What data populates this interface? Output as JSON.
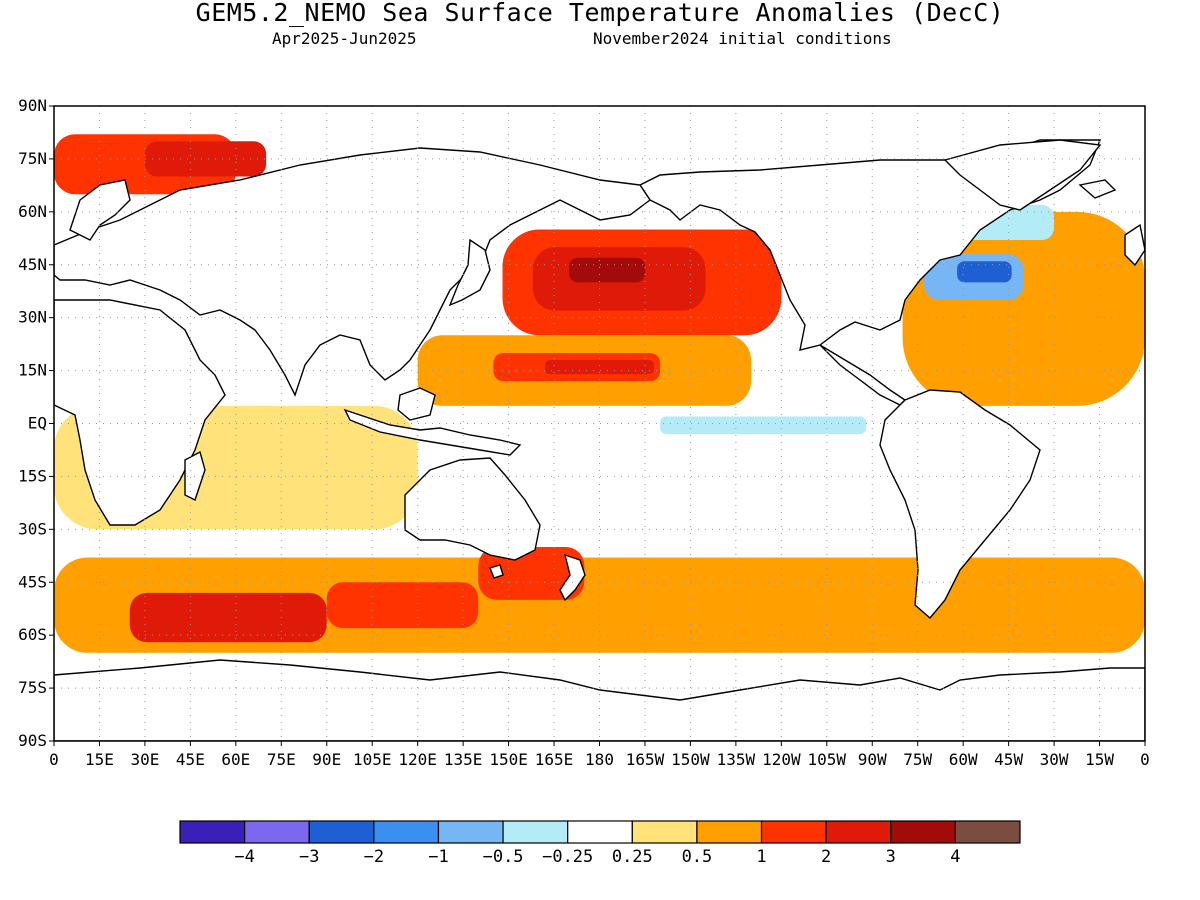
{
  "header": {
    "title": "GEM5.2_NEMO Sea Surface Temperature Anomalies (DecC)",
    "period": "Apr2025-Jun2025",
    "initial_conditions": "November2024 initial conditions"
  },
  "map": {
    "projection": "cylindrical equidistant",
    "lon_range": [
      0,
      360
    ],
    "lat_range": [
      -90,
      90
    ],
    "grid": "dotted every 15 degrees",
    "land_color": "#ffffff",
    "lat_labels": [
      {
        "lat": 90,
        "label": "90N"
      },
      {
        "lat": 75,
        "label": "75N"
      },
      {
        "lat": 60,
        "label": "60N"
      },
      {
        "lat": 45,
        "label": "45N"
      },
      {
        "lat": 30,
        "label": "30N"
      },
      {
        "lat": 15,
        "label": "15N"
      },
      {
        "lat": 0,
        "label": "EQ"
      },
      {
        "lat": -15,
        "label": "15S"
      },
      {
        "lat": -30,
        "label": "30S"
      },
      {
        "lat": -45,
        "label": "45S"
      },
      {
        "lat": -60,
        "label": "60S"
      },
      {
        "lat": -75,
        "label": "75S"
      },
      {
        "lat": -90,
        "label": "90S"
      }
    ],
    "lon_labels": [
      {
        "lon": 0,
        "label": "0"
      },
      {
        "lon": 15,
        "label": "15E"
      },
      {
        "lon": 30,
        "label": "30E"
      },
      {
        "lon": 45,
        "label": "45E"
      },
      {
        "lon": 60,
        "label": "60E"
      },
      {
        "lon": 75,
        "label": "75E"
      },
      {
        "lon": 90,
        "label": "90E"
      },
      {
        "lon": 105,
        "label": "105E"
      },
      {
        "lon": 120,
        "label": "120E"
      },
      {
        "lon": 135,
        "label": "135E"
      },
      {
        "lon": 150,
        "label": "150E"
      },
      {
        "lon": 165,
        "label": "165E"
      },
      {
        "lon": 180,
        "label": "180"
      },
      {
        "lon": 195,
        "label": "165W"
      },
      {
        "lon": 210,
        "label": "150W"
      },
      {
        "lon": 225,
        "label": "135W"
      },
      {
        "lon": 240,
        "label": "120W"
      },
      {
        "lon": 255,
        "label": "105W"
      },
      {
        "lon": 270,
        "label": "90W"
      },
      {
        "lon": 285,
        "label": "75W"
      },
      {
        "lon": 300,
        "label": "60W"
      },
      {
        "lon": 315,
        "label": "45W"
      },
      {
        "lon": 330,
        "label": "30W"
      },
      {
        "lon": 345,
        "label": "15W"
      },
      {
        "lon": 360,
        "label": "0"
      }
    ],
    "anomaly_regions": [
      {
        "name": "southern-ocean-band",
        "lon": [
          0,
          360
        ],
        "lat": [
          -65,
          -38
        ],
        "level": 0.5
      },
      {
        "name": "indian-ocean-band",
        "lon": [
          0,
          120
        ],
        "lat": [
          -30,
          5
        ],
        "level": 0.25
      },
      {
        "name": "north-atlantic-band",
        "lon": [
          280,
          360
        ],
        "lat": [
          5,
          60
        ],
        "level": 0.5
      },
      {
        "name": "north-pacific-warm",
        "lon": [
          148,
          240
        ],
        "lat": [
          25,
          55
        ],
        "level": 1
      },
      {
        "name": "north-pacific-core",
        "lon": [
          158,
          215
        ],
        "lat": [
          32,
          50
        ],
        "level": 2
      },
      {
        "name": "north-pacific-max",
        "lon": [
          170,
          195
        ],
        "lat": [
          40,
          47
        ],
        "level": 3
      },
      {
        "name": "west-pacific-warm",
        "lon": [
          120,
          230
        ],
        "lat": [
          5,
          25
        ],
        "level": 0.5
      },
      {
        "name": "west-pacific-core",
        "lon": [
          145,
          200
        ],
        "lat": [
          12,
          20
        ],
        "level": 1
      },
      {
        "name": "west-pacific-max",
        "lon": [
          162,
          198
        ],
        "lat": [
          14,
          18
        ],
        "level": 2
      },
      {
        "name": "equatorial-pacific-cool",
        "lon": [
          160,
          270
        ],
        "lat": [
          -5,
          5
        ],
        "level": -0.25
      },
      {
        "name": "equatorial-pacific-cooler",
        "lon": [
          200,
          268
        ],
        "lat": [
          -3,
          2
        ],
        "level": -0.5
      },
      {
        "name": "gulf-stream-cool",
        "lon": [
          287,
          320
        ],
        "lat": [
          35,
          48
        ],
        "level": -1
      },
      {
        "name": "gulf-stream-core",
        "lon": [
          298,
          316
        ],
        "lat": [
          40,
          46
        ],
        "level": -3
      },
      {
        "name": "labrador-cool",
        "lon": [
          300,
          330
        ],
        "lat": [
          52,
          62
        ],
        "level": -0.5
      },
      {
        "name": "nordic-seas-warm",
        "lon": [
          0,
          60
        ],
        "lat": [
          65,
          82
        ],
        "level": 1
      },
      {
        "name": "barents-max",
        "lon": [
          30,
          70
        ],
        "lat": [
          70,
          80
        ],
        "level": 2
      },
      {
        "name": "southern-ocean-max-1",
        "lon": [
          25,
          90
        ],
        "lat": [
          -62,
          -48
        ],
        "level": 2
      },
      {
        "name": "southern-ocean-max-2",
        "lon": [
          90,
          140
        ],
        "lat": [
          -58,
          -45
        ],
        "level": 1
      },
      {
        "name": "tasman-warm",
        "lon": [
          140,
          175
        ],
        "lat": [
          -50,
          -35
        ],
        "level": 1
      }
    ]
  },
  "colorbar": {
    "colors": [
      "#3a1fb8",
      "#7b68ee",
      "#1e5fd4",
      "#3b8fef",
      "#76b6f5",
      "#b3ecf7",
      "#ffffff",
      "#ffe27a",
      "#ffa000",
      "#ff3300",
      "#e01a08",
      "#a30a0a",
      "#7a4d40"
    ],
    "labels": [
      "−4",
      "−3",
      "−2",
      "−1",
      "−0.5",
      "−0.25",
      "0.25",
      "0.5",
      "1",
      "2",
      "3",
      "4"
    ],
    "levels": [
      -4,
      -3,
      -2,
      -1,
      -0.5,
      -0.25,
      0.25,
      0.5,
      1,
      2,
      3,
      4
    ]
  }
}
